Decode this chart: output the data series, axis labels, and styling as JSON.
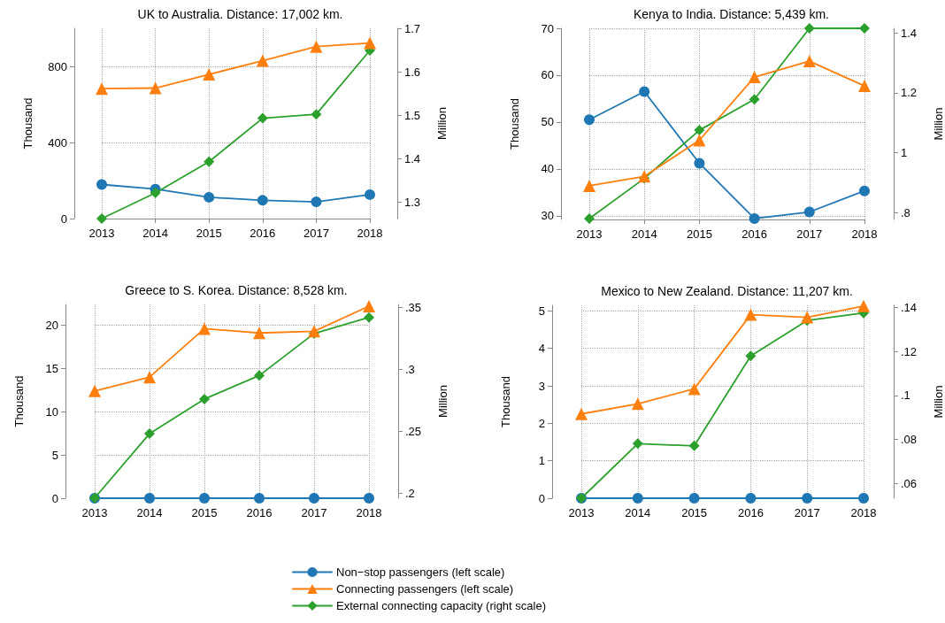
{
  "chart_data": [
    {
      "type": "line",
      "title": "UK to Australia. Distance: 17,002 km.",
      "ylabel": "Thousand",
      "y2label": "Million",
      "categories": [
        "2013",
        "2014",
        "2015",
        "2016",
        "2017",
        "2018"
      ],
      "ylim": [
        0,
        1000
      ],
      "yticks": [
        0,
        400,
        800
      ],
      "y2lim": [
        1.262,
        1.7
      ],
      "y2ticks": [
        1.3,
        1.4,
        1.5,
        1.6,
        1.7
      ],
      "grid": true,
      "legend": "bottom",
      "line_style": "solid",
      "series": [
        {
          "name": "Non−stop passengers (left scale)",
          "color": "#1f77b4",
          "marker": "circle",
          "values": [
            179,
            155,
            112,
            96,
            88,
            126
          ]
        },
        {
          "name": "Connecting passengers (left scale)",
          "color": "#ff7f0e",
          "marker": "triangle",
          "values": [
            683,
            686,
            758,
            830,
            904,
            923
          ]
        },
        {
          "name": "External connecting capacity (right scale)",
          "color": "#2ca02c",
          "marker": "diamond",
          "axis": "y2",
          "values": [
            1.262,
            1.321,
            1.393,
            1.493,
            1.502,
            1.649
          ]
        }
      ]
    },
    {
      "type": "line",
      "title": "Kenya to India. Distance: 5,439 km.",
      "ylabel": "Thousand",
      "y2label": "Million",
      "categories": [
        "2013",
        "2014",
        "2015",
        "2016",
        "2017",
        "2018"
      ],
      "ylim": [
        29.2,
        70
      ],
      "yticks": [
        30,
        40,
        50,
        60,
        70
      ],
      "y2lim": [
        0.777,
        1.415
      ],
      "y2ticks": [
        {
          "value": 0.8,
          "label": ".8"
        },
        1,
        1.2,
        1.4
      ],
      "grid": true,
      "legend": "bottom",
      "line_style": "solid",
      "series": [
        {
          "name": "Non−stop passengers (left scale)",
          "color": "#1f77b4",
          "marker": "circle",
          "values": [
            50.5,
            56.5,
            41.2,
            29.4,
            30.8,
            35.3
          ]
        },
        {
          "name": "Connecting passengers (left scale)",
          "color": "#ff7f0e",
          "marker": "triangle",
          "values": [
            36.4,
            38.4,
            46.1,
            59.6,
            63.0,
            57.7
          ]
        },
        {
          "name": "External connecting capacity (right scale)",
          "color": "#2ca02c",
          "marker": "diamond",
          "axis": "y2",
          "values": [
            0.78,
            0.914,
            1.075,
            1.178,
            1.415,
            1.415
          ]
        }
      ]
    },
    {
      "type": "line",
      "title": "Greece to S. Korea. Distance: 8,528 km.",
      "ylabel": "Thousand",
      "y2label": "Million",
      "categories": [
        "2013",
        "2014",
        "2015",
        "2016",
        "2017",
        "2018"
      ],
      "ylim": [
        0,
        22.4
      ],
      "yticks": [
        0,
        5,
        10,
        15,
        20
      ],
      "y2lim": [
        0.1958,
        0.3525
      ],
      "y2ticks": [
        {
          "value": 0.2,
          "label": ".2"
        },
        {
          "value": 0.25,
          "label": ".25"
        },
        {
          "value": 0.3,
          "label": ".3"
        },
        {
          "value": 0.35,
          "label": ".35"
        }
      ],
      "grid": true,
      "legend": "bottom",
      "line_style": "solid",
      "series": [
        {
          "name": "Non−stop passengers (left scale)",
          "color": "#1f77b4",
          "marker": "circle",
          "values": [
            0,
            0,
            0,
            0,
            0,
            0
          ]
        },
        {
          "name": "Connecting passengers (left scale)",
          "color": "#ff7f0e",
          "marker": "triangle",
          "values": [
            12.4,
            14.0,
            19.6,
            19.1,
            19.3,
            22.2
          ]
        },
        {
          "name": "External connecting capacity (right scale)",
          "color": "#2ca02c",
          "marker": "diamond",
          "axis": "y2",
          "values": [
            0.196,
            0.248,
            0.276,
            0.295,
            0.329,
            0.342
          ]
        }
      ]
    },
    {
      "type": "line",
      "title": "Mexico to New Zealand. Distance: 11,207 km.",
      "ylabel": "Thousand",
      "y2label": "Million",
      "categories": [
        "2013",
        "2014",
        "2015",
        "2016",
        "2017",
        "2018"
      ],
      "ylim": [
        0,
        5.15
      ],
      "yticks": [
        0,
        1,
        2,
        3,
        4,
        5
      ],
      "y2lim": [
        0.0533,
        0.141
      ],
      "y2ticks": [
        {
          "value": 0.06,
          "label": ".06"
        },
        {
          "value": 0.08,
          "label": ".08"
        },
        {
          "value": 0.1,
          "label": ".1"
        },
        {
          "value": 0.12,
          "label": ".12"
        },
        {
          "value": 0.14,
          "label": ".14"
        }
      ],
      "grid": true,
      "legend": "bottom",
      "line_style": "solid",
      "series": [
        {
          "name": "Non−stop passengers (left scale)",
          "color": "#1f77b4",
          "marker": "circle",
          "values": [
            0,
            0,
            0,
            0,
            0,
            0
          ]
        },
        {
          "name": "Connecting passengers (left scale)",
          "color": "#ff7f0e",
          "marker": "triangle",
          "values": [
            2.25,
            2.52,
            2.92,
            4.9,
            4.83,
            5.13
          ]
        },
        {
          "name": "External connecting capacity (right scale)",
          "color": "#2ca02c",
          "marker": "diamond",
          "axis": "y2",
          "values": [
            0.0533,
            0.0781,
            0.0771,
            0.118,
            0.1341,
            0.1375
          ]
        }
      ]
    }
  ]
}
